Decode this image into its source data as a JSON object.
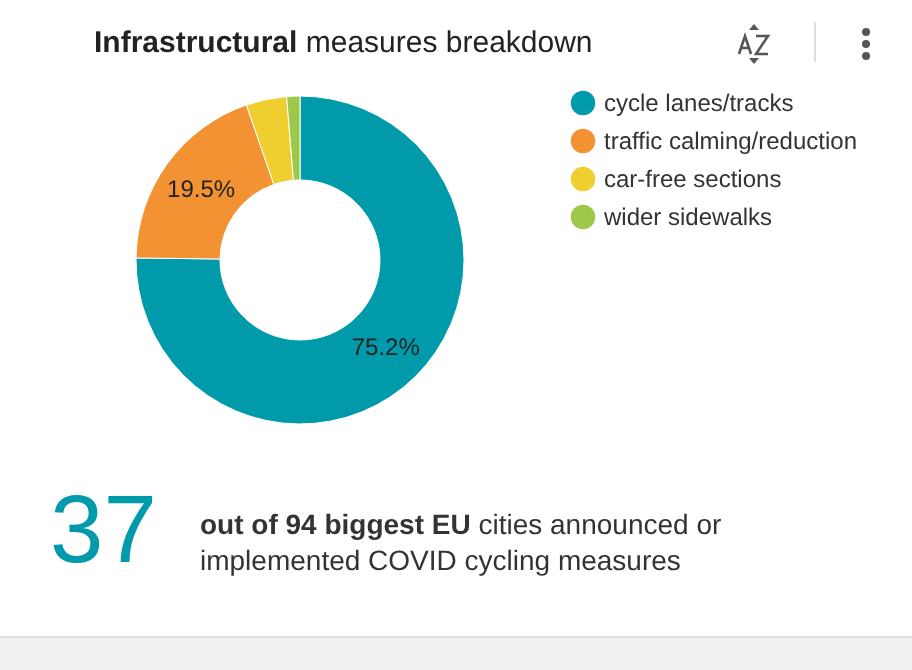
{
  "chart_data": {
    "type": "donut",
    "title": "Infrastructural measures breakdown",
    "categories": [
      "cycle lanes/tracks",
      "traffic calming/reduction",
      "car-free sections",
      "wider sidewalks"
    ],
    "values": [
      75.2,
      19.5,
      4,
      1.3
    ],
    "colors": [
      "#009aab",
      "#f39232",
      "#efcf30",
      "#9cc94a"
    ],
    "value_labels": [
      "75.2%",
      "19.5%",
      null,
      null
    ],
    "legend": "right",
    "annotations": [
      "37",
      "out of 94 biggest EU cities announced or implemented COVID cycling measures"
    ]
  }
}
